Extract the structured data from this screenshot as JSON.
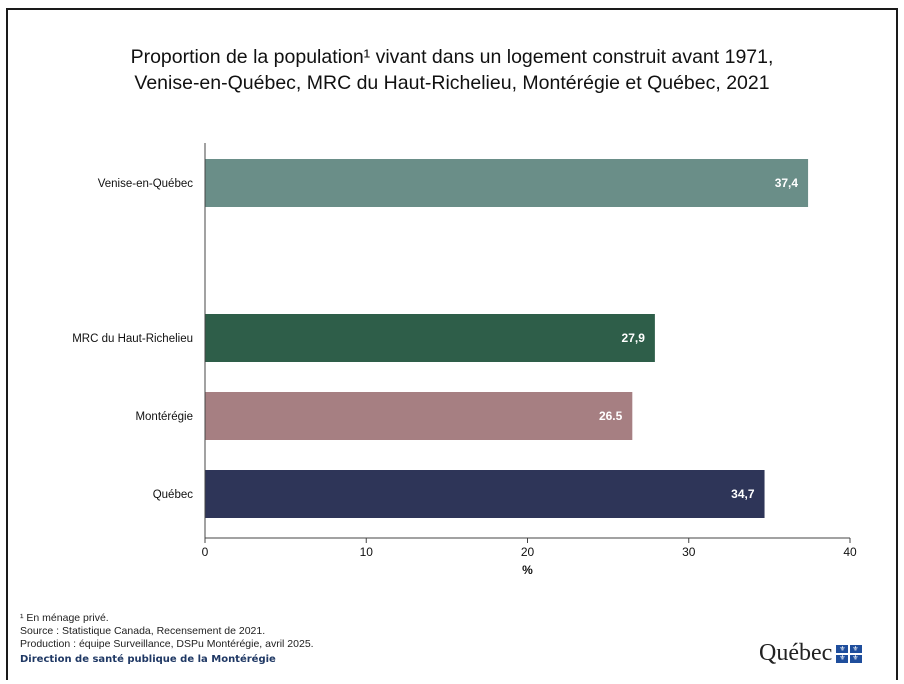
{
  "chart_data": {
    "type": "bar",
    "orientation": "horizontal",
    "title_lines": [
      "Proportion de la population¹ vivant dans un logement construit avant 1971,",
      "Venise-en-Québec, MRC du Haut-Richelieu, Montérégie et Québec, 2021"
    ],
    "categories": [
      "Venise-en-Québec",
      "MRC du Haut-Richelieu",
      "Montérégie",
      "Québec"
    ],
    "values": [
      37.4,
      27.9,
      26.5,
      34.7
    ],
    "value_labels": [
      "37,4",
      "27,9",
      "26.5",
      "34,7"
    ],
    "colors": [
      "#6a8e88",
      "#2e5e49",
      "#a67f82",
      "#2e3558"
    ],
    "xlim": [
      0,
      40
    ],
    "xticks": [
      0,
      10,
      20,
      30,
      40
    ],
    "xlabel": "%",
    "ylabel": "",
    "grid": false,
    "legend": "none"
  },
  "footer": {
    "note": "¹ En ménage privé.",
    "source": "Source : Statistique Canada, Recensement de 2021.",
    "production": "Production : équipe Surveillance, DSPu Montérégie, avril 2025.",
    "direction": "Direction de santé publique de la Montérégie"
  },
  "logo": {
    "text": "Québec"
  }
}
